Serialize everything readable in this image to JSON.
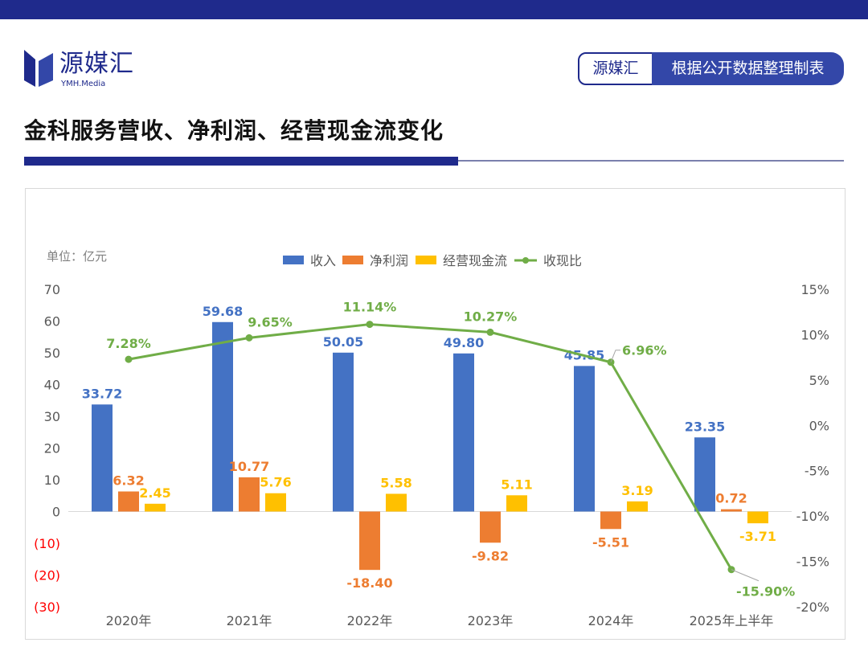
{
  "header": {
    "logo_name": "源媒汇",
    "logo_sub": "YMH.Media",
    "source_badge_left": "源媒汇",
    "source_badge_right": "根据公开数据整理制表"
  },
  "page_title": "金科服务营收、净利润、经营现金流变化",
  "colors": {
    "brand": "#1f2a8c",
    "revenue": "#4472c4",
    "net_profit": "#ed7d31",
    "cash_flow": "#ffc000",
    "ratio": "#70ad47",
    "negative_tick": "#ff0000"
  },
  "chart_data": {
    "type": "bar",
    "unit_label": "单位：亿元",
    "categories": [
      "2020年",
      "2021年",
      "2022年",
      "2023年",
      "2024年",
      "2025年上半年"
    ],
    "series": [
      {
        "name": "收入",
        "type": "bar",
        "axis": "left",
        "values": [
          33.72,
          59.68,
          50.05,
          49.8,
          45.85,
          23.35
        ],
        "labels": [
          "33.72",
          "59.68",
          "50.05",
          "49.80",
          "45.85",
          "23.35"
        ]
      },
      {
        "name": "净利润",
        "type": "bar",
        "axis": "left",
        "values": [
          6.32,
          10.77,
          -18.4,
          -9.82,
          -5.51,
          0.72
        ],
        "labels": [
          "6.32",
          "10.77",
          "-18.40",
          "-9.82",
          "-5.51",
          "0.72"
        ]
      },
      {
        "name": "经营现金流",
        "type": "bar",
        "axis": "left",
        "values": [
          2.45,
          5.76,
          5.58,
          5.11,
          3.19,
          -3.71
        ],
        "labels": [
          "2.45",
          "5.76",
          "5.58",
          "5.11",
          "3.19",
          "-3.71"
        ]
      },
      {
        "name": "收现比",
        "type": "line",
        "axis": "right",
        "values": [
          7.28,
          9.65,
          11.14,
          10.27,
          6.96,
          -15.9
        ],
        "labels": [
          "7.28%",
          "9.65%",
          "11.14%",
          "10.27%",
          "6.96%",
          "-15.90%"
        ]
      }
    ],
    "left_axis": {
      "ylim": [
        -30,
        70
      ],
      "ticks": [
        70,
        60,
        50,
        40,
        30,
        20,
        10,
        0,
        -10,
        -20,
        -30
      ],
      "tick_labels": [
        "70",
        "60",
        "50",
        "40",
        "30",
        "20",
        "10",
        "0",
        "(10)",
        "(20)",
        "(30)"
      ]
    },
    "right_axis": {
      "ylim": [
        -20,
        15
      ],
      "ticks": [
        15,
        10,
        5,
        0,
        -5,
        -10,
        -15,
        -20
      ],
      "tick_labels": [
        "15%",
        "10%",
        "5%",
        "0%",
        "-5%",
        "-10%",
        "-15%",
        "-20%"
      ]
    },
    "legend": {
      "position": "top-center",
      "items": [
        "收入",
        "净利润",
        "经营现金流",
        "收现比"
      ]
    },
    "grid": false
  }
}
